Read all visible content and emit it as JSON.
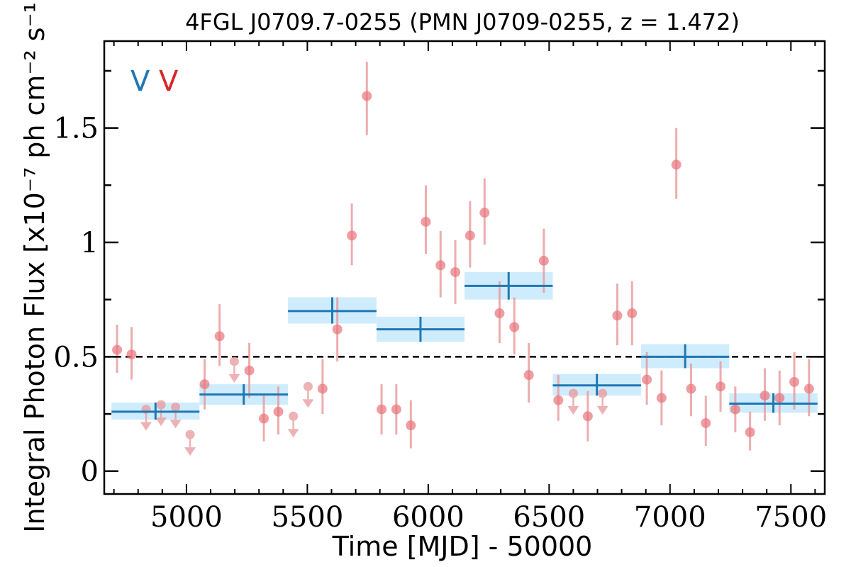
{
  "chart_data": {
    "type": "scatter",
    "title": "4FGL J0709.7-0255 (PMN J0709-0255, z = 1.472)",
    "xlabel": "Time [MJD] - 50000",
    "ylabel": "Integral Photon Flux [x10⁻⁷ ph cm⁻² s⁻¹]",
    "xlim": [
      4660,
      7640
    ],
    "ylim": [
      -0.1,
      1.88
    ],
    "x_ticks": [
      5000,
      5500,
      6000,
      6500,
      7000,
      7500
    ],
    "x_tick_labels": [
      "5000",
      "5500",
      "6000",
      "6500",
      "7000",
      "7500"
    ],
    "y_ticks": [
      0,
      0.5,
      1,
      1.5
    ],
    "y_tick_labels": [
      "0",
      "0.5",
      "1",
      "1.5"
    ],
    "reference_line": 0.5,
    "legend_marks": [
      {
        "text": "V",
        "color": "#1f77b4"
      },
      {
        "text": "V",
        "color": "#d62728"
      }
    ],
    "colors": {
      "short_points": "#e8737a",
      "short_errors": "#e8999c",
      "long_bins": "#1f77b4",
      "long_bands": "#bfe6fb"
    },
    "series": [
      {
        "kind": "detections",
        "points": [
          {
            "x": 4713,
            "y": 0.53,
            "lo": 0.43,
            "hi": 0.64
          },
          {
            "x": 4773,
            "y": 0.51,
            "lo": 0.4,
            "hi": 0.63
          },
          {
            "x": 5075,
            "y": 0.38,
            "lo": 0.27,
            "hi": 0.49
          },
          {
            "x": 5137,
            "y": 0.59,
            "lo": 0.46,
            "hi": 0.73
          },
          {
            "x": 5260,
            "y": 0.44,
            "lo": 0.32,
            "hi": 0.56
          },
          {
            "x": 5320,
            "y": 0.23,
            "lo": 0.13,
            "hi": 0.33
          },
          {
            "x": 5380,
            "y": 0.26,
            "lo": 0.16,
            "hi": 0.37
          },
          {
            "x": 5563,
            "y": 0.36,
            "lo": 0.25,
            "hi": 0.49
          },
          {
            "x": 5624,
            "y": 0.62,
            "lo": 0.48,
            "hi": 0.76
          },
          {
            "x": 5684,
            "y": 1.03,
            "lo": 0.9,
            "hi": 1.17
          },
          {
            "x": 5746,
            "y": 1.64,
            "lo": 1.47,
            "hi": 1.79
          },
          {
            "x": 5807,
            "y": 0.27,
            "lo": 0.16,
            "hi": 0.38
          },
          {
            "x": 5868,
            "y": 0.27,
            "lo": 0.16,
            "hi": 0.38
          },
          {
            "x": 5928,
            "y": 0.2,
            "lo": 0.1,
            "hi": 0.31
          },
          {
            "x": 5990,
            "y": 1.09,
            "lo": 0.95,
            "hi": 1.25
          },
          {
            "x": 6051,
            "y": 0.9,
            "lo": 0.76,
            "hi": 1.05
          },
          {
            "x": 6112,
            "y": 0.87,
            "lo": 0.73,
            "hi": 1.01
          },
          {
            "x": 6173,
            "y": 1.03,
            "lo": 0.89,
            "hi": 1.18
          },
          {
            "x": 6233,
            "y": 1.13,
            "lo": 0.99,
            "hi": 1.28
          },
          {
            "x": 6295,
            "y": 0.69,
            "lo": 0.56,
            "hi": 0.83
          },
          {
            "x": 6356,
            "y": 0.63,
            "lo": 0.51,
            "hi": 0.76
          },
          {
            "x": 6416,
            "y": 0.42,
            "lo": 0.3,
            "hi": 0.56
          },
          {
            "x": 6478,
            "y": 0.92,
            "lo": 0.78,
            "hi": 1.06
          },
          {
            "x": 6538,
            "y": 0.31,
            "lo": 0.22,
            "hi": 0.42
          },
          {
            "x": 6660,
            "y": 0.24,
            "lo": 0.13,
            "hi": 0.35
          },
          {
            "x": 6782,
            "y": 0.68,
            "lo": 0.55,
            "hi": 0.82
          },
          {
            "x": 6843,
            "y": 0.69,
            "lo": 0.55,
            "hi": 0.83
          },
          {
            "x": 6904,
            "y": 0.4,
            "lo": 0.29,
            "hi": 0.52
          },
          {
            "x": 6965,
            "y": 0.32,
            "lo": 0.2,
            "hi": 0.44
          },
          {
            "x": 7026,
            "y": 1.34,
            "lo": 1.19,
            "hi": 1.5
          },
          {
            "x": 7087,
            "y": 0.36,
            "lo": 0.24,
            "hi": 0.47
          },
          {
            "x": 7148,
            "y": 0.21,
            "lo": 0.11,
            "hi": 0.33
          },
          {
            "x": 7209,
            "y": 0.37,
            "lo": 0.26,
            "hi": 0.48
          },
          {
            "x": 7270,
            "y": 0.27,
            "lo": 0.17,
            "hi": 0.37
          },
          {
            "x": 7331,
            "y": 0.17,
            "lo": 0.09,
            "hi": 0.26
          },
          {
            "x": 7392,
            "y": 0.33,
            "lo": 0.22,
            "hi": 0.45
          },
          {
            "x": 7453,
            "y": 0.32,
            "lo": 0.2,
            "hi": 0.44
          },
          {
            "x": 7514,
            "y": 0.39,
            "lo": 0.27,
            "hi": 0.52
          },
          {
            "x": 7575,
            "y": 0.36,
            "lo": 0.24,
            "hi": 0.49
          }
        ]
      },
      {
        "kind": "upper_limits",
        "points": [
          {
            "x": 4833,
            "y": 0.27
          },
          {
            "x": 4895,
            "y": 0.29
          },
          {
            "x": 4955,
            "y": 0.28
          },
          {
            "x": 5015,
            "y": 0.16
          },
          {
            "x": 5198,
            "y": 0.48
          },
          {
            "x": 5442,
            "y": 0.24
          },
          {
            "x": 5503,
            "y": 0.37
          },
          {
            "x": 6600,
            "y": 0.34
          },
          {
            "x": 6721,
            "y": 0.34
          }
        ]
      },
      {
        "kind": "long_bins",
        "bins": [
          {
            "x0": 4690,
            "x1": 5054,
            "y": 0.26,
            "lo": 0.225,
            "hi": 0.3
          },
          {
            "x0": 5054,
            "x1": 5420,
            "y": 0.335,
            "lo": 0.29,
            "hi": 0.38
          },
          {
            "x0": 5420,
            "x1": 5786,
            "y": 0.7,
            "lo": 0.645,
            "hi": 0.76
          },
          {
            "x0": 5786,
            "x1": 6150,
            "y": 0.62,
            "lo": 0.565,
            "hi": 0.675
          },
          {
            "x0": 6150,
            "x1": 6515,
            "y": 0.81,
            "lo": 0.75,
            "hi": 0.87
          },
          {
            "x0": 6515,
            "x1": 6880,
            "y": 0.375,
            "lo": 0.33,
            "hi": 0.425
          },
          {
            "x0": 6880,
            "x1": 7245,
            "y": 0.5,
            "lo": 0.45,
            "hi": 0.555
          },
          {
            "x0": 7245,
            "x1": 7610,
            "y": 0.295,
            "lo": 0.255,
            "hi": 0.34
          }
        ]
      }
    ]
  }
}
